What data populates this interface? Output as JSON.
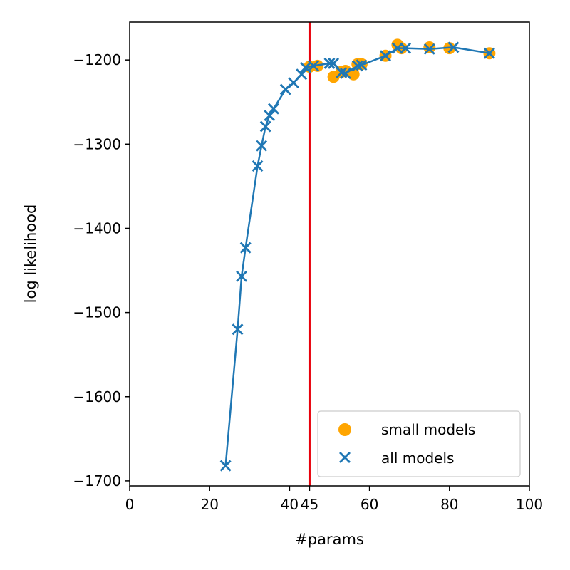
{
  "chart_data": {
    "type": "scatter",
    "xlabel": "#params",
    "ylabel": "log likelihood",
    "xlim": [
      0,
      100
    ],
    "ylim": [
      -1706,
      -1155
    ],
    "x_ticks": [
      0,
      20,
      40,
      45,
      60,
      80,
      100
    ],
    "x_tick_labels": [
      "0",
      "20",
      "40",
      "45",
      "60",
      "80",
      "100"
    ],
    "y_ticks": [
      -1700,
      -1600,
      -1500,
      -1400,
      -1300,
      -1200
    ],
    "y_tick_labels": [
      "−1700",
      "−1600",
      "−1500",
      "−1400",
      "−1300",
      "−1200"
    ],
    "grid": false,
    "legend_position": "bottom-right",
    "vline": {
      "x": 45,
      "color": "#e8000b"
    },
    "series": [
      {
        "name": "small models",
        "kind": "scatter-circle",
        "color": "#ffa500",
        "points": [
          [
            45,
            -1208
          ],
          [
            47,
            -1207
          ],
          [
            51,
            -1220
          ],
          [
            53,
            -1214
          ],
          [
            54,
            -1213
          ],
          [
            56,
            -1217
          ],
          [
            57,
            -1205
          ],
          [
            58,
            -1205
          ],
          [
            64,
            -1195
          ],
          [
            67,
            -1182
          ],
          [
            68,
            -1186
          ],
          [
            75,
            -1185
          ],
          [
            80,
            -1186
          ],
          [
            90,
            -1192
          ]
        ]
      },
      {
        "name": "all models",
        "kind": "scatter-x-line",
        "color": "#1f77b4",
        "points": [
          [
            24,
            -1682
          ],
          [
            27,
            -1520
          ],
          [
            28,
            -1457
          ],
          [
            29,
            -1423
          ],
          [
            32,
            -1326
          ],
          [
            33,
            -1302
          ],
          [
            34,
            -1279
          ],
          [
            35,
            -1266
          ],
          [
            36,
            -1258
          ],
          [
            39,
            -1235
          ],
          [
            41,
            -1227
          ],
          [
            43,
            -1217
          ],
          [
            44,
            -1209
          ],
          [
            46,
            -1207
          ],
          [
            50,
            -1204
          ],
          [
            51,
            -1204
          ],
          [
            53,
            -1215
          ],
          [
            54,
            -1216
          ],
          [
            57,
            -1207
          ],
          [
            58,
            -1206
          ],
          [
            64,
            -1195
          ],
          [
            67,
            -1186
          ],
          [
            69,
            -1186
          ],
          [
            75,
            -1187
          ],
          [
            81,
            -1185
          ],
          [
            90,
            -1192
          ]
        ]
      }
    ]
  }
}
